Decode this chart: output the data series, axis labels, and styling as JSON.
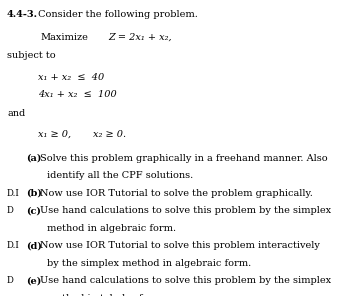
{
  "bg_color": "#ffffff",
  "title_bold": "4.4-3.",
  "title_rest": " Consider the following problem.",
  "maximize_label": "Maximize",
  "objective": "Z = 2x₁ + x₂,",
  "subject_to": "subject to",
  "constraint1_lhs": "x₁ + x₂  ≤  40",
  "constraint2_lhs": "4x₁ + x₂  ≤  100",
  "and_text": "and",
  "nonneg": "x₁ ≥ 0,       x₂ ≥ 0.",
  "part_a_label": "(a)",
  "part_a_line1": "Solve this problem graphically in a freehand manner. Also",
  "part_a_line2": "identify all the CPF solutions.",
  "part_b_prefix": "D.I",
  "part_b_label": "(b)",
  "part_b_line1": "Now use IOR Tutorial to solve the problem graphically.",
  "part_c_prefix": "D",
  "part_c_label": "(c)",
  "part_c_line1": "Use hand calculations to solve this problem by the simplex",
  "part_c_line2": "method in algebraic form.",
  "part_d_prefix": "D.I",
  "part_d_label": "(d)",
  "part_d_line1": "Now use IOR Tutorial to solve this problem interactively",
  "part_d_line2": "by the simplex method in algebraic form.",
  "part_e_prefix": "D",
  "part_e_label": "(e)",
  "part_e_line1": "Use hand calculations to solve this problem by the simplex",
  "part_e_line2": "method in tabular form.",
  "fs": 7.0,
  "fs_small": 6.2,
  "lh": 0.073
}
